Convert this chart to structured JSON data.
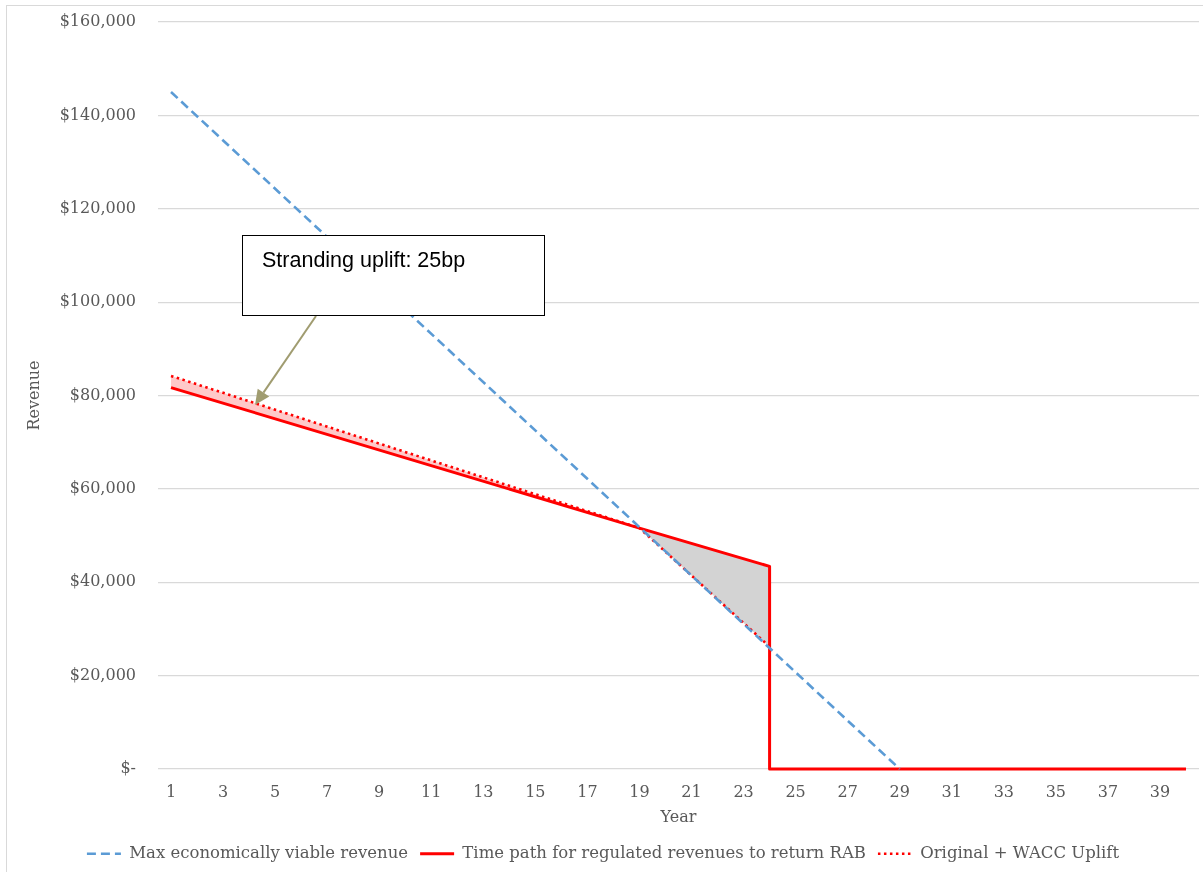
{
  "chart_data": {
    "type": "line",
    "xlabel": "Year",
    "ylabel": "Revenue",
    "xlim": [
      0.5,
      40.5
    ],
    "xticks": [
      1,
      3,
      5,
      7,
      9,
      11,
      13,
      15,
      17,
      19,
      21,
      23,
      25,
      27,
      29,
      31,
      33,
      35,
      37,
      39
    ],
    "ylim": [
      0,
      160000
    ],
    "yticks": [
      {
        "value": 0,
        "label": "$-"
      },
      {
        "value": 20000,
        "label": "$20,000"
      },
      {
        "value": 40000,
        "label": "$40,000"
      },
      {
        "value": 60000,
        "label": "$60,000"
      },
      {
        "value": 80000,
        "label": "$80,000"
      },
      {
        "value": 100000,
        "label": "$100,000"
      },
      {
        "value": 120000,
        "label": "$120,000"
      },
      {
        "value": 140000,
        "label": "$140,000"
      },
      {
        "value": 160000,
        "label": "$160,000"
      }
    ],
    "grid": "y",
    "legend": "bottom",
    "annotations": [
      "Stranding uplift: 25bp"
    ],
    "series": [
      {
        "name": "Max economically viable revenue",
        "color": "#5b9bd5",
        "line_style": "dashed",
        "x": [
          1,
          29
        ],
        "values": [
          145000,
          0
        ]
      },
      {
        "name": "Time path for regulated revenues to return RAB",
        "color": "#ff0000",
        "line_style": "solid",
        "x": [
          1,
          19,
          24,
          24,
          40
        ],
        "values": [
          81700,
          51600,
          43400,
          0,
          0
        ]
      },
      {
        "name": "Original + WACC Uplift",
        "color": "#ff0000",
        "line_style": "dotted",
        "x": [
          1,
          19,
          24
        ],
        "values": [
          84200,
          51600,
          26200
        ],
        "lower": [
          81700,
          51600,
          26200
        ],
        "upper": [
          84200,
          51600,
          43400
        ]
      }
    ]
  }
}
